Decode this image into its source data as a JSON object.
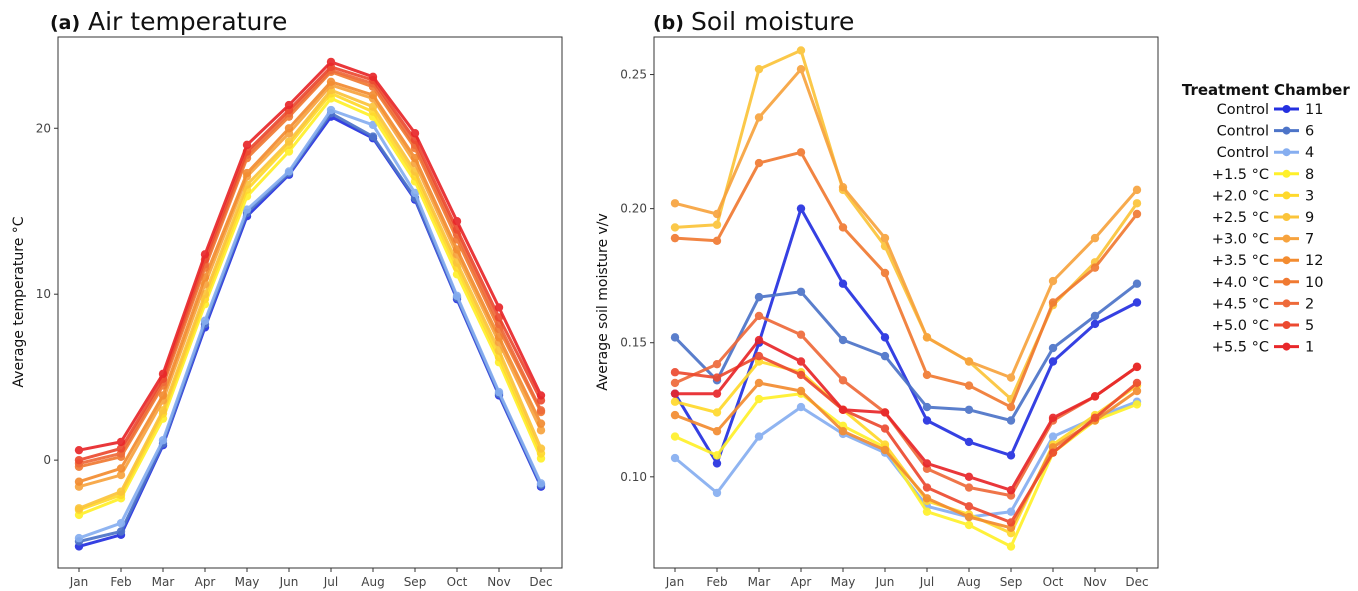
{
  "chart_data": [
    {
      "type": "line",
      "tag": "(a)",
      "title": "Air temperature",
      "ylabel": "Average temperature °C",
      "xlabel": "",
      "categories": [
        "Jan",
        "Feb",
        "Mar",
        "Apr",
        "May",
        "Jun",
        "Jul",
        "Aug",
        "Sep",
        "Oct",
        "Nov",
        "Dec"
      ],
      "ylim": [
        -6.5,
        25.5
      ],
      "yticks": [
        0,
        10,
        20
      ],
      "grid": false,
      "series": [
        {
          "name": "11",
          "treatment": "Control",
          "color": "#2430e0",
          "values": [
            -5.2,
            -4.5,
            0.9,
            8.0,
            14.7,
            17.2,
            20.7,
            19.4,
            15.7,
            9.7,
            3.9,
            -1.6
          ]
        },
        {
          "name": "6",
          "treatment": "Control",
          "color": "#4d74c8",
          "values": [
            -4.9,
            -4.3,
            1.0,
            8.2,
            14.9,
            17.3,
            20.9,
            19.5,
            15.8,
            9.8,
            4.0,
            -1.5
          ]
        },
        {
          "name": "4",
          "treatment": "Control",
          "color": "#86aef0",
          "values": [
            -4.7,
            -3.8,
            1.2,
            8.4,
            15.1,
            17.4,
            21.1,
            20.2,
            16.1,
            9.9,
            4.1,
            -1.4
          ]
        },
        {
          "name": "8",
          "treatment": "+1.5 °C",
          "color": "#fff02a",
          "values": [
            -3.3,
            -2.3,
            2.5,
            9.4,
            15.9,
            18.6,
            21.8,
            20.7,
            16.8,
            11.2,
            5.9,
            0.1
          ]
        },
        {
          "name": "3",
          "treatment": "+2.0 °C",
          "color": "#ffd92c",
          "values": [
            -3.0,
            -2.1,
            2.8,
            9.7,
            16.3,
            19.0,
            22.1,
            21.0,
            17.1,
            11.6,
            6.2,
            0.4
          ]
        },
        {
          "name": "9",
          "treatment": "+2.5 °C",
          "color": "#fbc43a",
          "values": [
            -2.9,
            -1.9,
            3.0,
            10.0,
            16.6,
            19.2,
            22.3,
            21.3,
            17.4,
            11.9,
            6.6,
            0.7
          ]
        },
        {
          "name": "7",
          "treatment": "+3.0 °C",
          "color": "#f7a33e",
          "values": [
            -1.6,
            -0.9,
            3.6,
            10.6,
            17.1,
            19.7,
            22.6,
            21.8,
            17.9,
            12.4,
            7.1,
            1.8
          ]
        },
        {
          "name": "12",
          "treatment": "+3.5 °C",
          "color": "#f38c30",
          "values": [
            -1.3,
            -0.5,
            3.9,
            11.0,
            17.3,
            20.0,
            22.8,
            22.0,
            18.2,
            12.7,
            7.4,
            2.2
          ]
        },
        {
          "name": "10",
          "treatment": "+4.0 °C",
          "color": "#f07a32",
          "values": [
            -0.4,
            0.2,
            4.5,
            11.6,
            18.2,
            20.7,
            23.4,
            22.5,
            18.8,
            13.3,
            7.9,
            2.9
          ]
        },
        {
          "name": "2",
          "treatment": "+4.5 °C",
          "color": "#ee6a3a",
          "values": [
            -0.2,
            0.4,
            4.7,
            11.8,
            18.4,
            20.9,
            23.5,
            22.7,
            19.0,
            13.6,
            8.2,
            3.0
          ]
        },
        {
          "name": "5",
          "treatment": "+5.0 °C",
          "color": "#ec4a30",
          "values": [
            0.0,
            0.7,
            4.9,
            12.1,
            18.6,
            21.1,
            23.7,
            22.9,
            19.3,
            13.9,
            8.6,
            3.6
          ]
        },
        {
          "name": "1",
          "treatment": "+5.5 °C",
          "color": "#e8272a",
          "values": [
            0.6,
            1.1,
            5.2,
            12.4,
            19.0,
            21.4,
            24.0,
            23.1,
            19.7,
            14.4,
            9.2,
            3.9
          ]
        }
      ]
    },
    {
      "type": "line",
      "tag": "(b)",
      "title": "Soil moisture",
      "ylabel": "Average soil moisture v/v",
      "xlabel": "",
      "categories": [
        "Jan",
        "Feb",
        "Mar",
        "Apr",
        "May",
        "Jun",
        "Jul",
        "Aug",
        "Sep",
        "Oct",
        "Nov",
        "Dec"
      ],
      "ylim": [
        0.066,
        0.264
      ],
      "yticks": [
        0.1,
        0.15,
        0.2,
        0.25
      ],
      "yticklabels": [
        "0.10",
        "0.15",
        "0.20",
        "0.25"
      ],
      "grid": false,
      "series": [
        {
          "name": "11",
          "treatment": "Control",
          "color": "#2430e0",
          "values": [
            0.131,
            0.105,
            0.15,
            0.2,
            0.172,
            0.152,
            0.121,
            0.113,
            0.108,
            0.143,
            0.157,
            0.165
          ]
        },
        {
          "name": "6",
          "treatment": "Control",
          "color": "#4d74c8",
          "values": [
            0.152,
            0.136,
            0.167,
            0.169,
            0.151,
            0.145,
            0.126,
            0.125,
            0.121,
            0.148,
            0.16,
            0.172
          ]
        },
        {
          "name": "4",
          "treatment": "Control",
          "color": "#86aef0",
          "values": [
            0.107,
            0.094,
            0.115,
            0.126,
            0.116,
            0.109,
            0.089,
            0.085,
            0.087,
            0.115,
            0.122,
            0.128
          ]
        },
        {
          "name": "8",
          "treatment": "+1.5 °C",
          "color": "#fff02a",
          "values": [
            0.115,
            0.108,
            0.129,
            0.131,
            0.119,
            0.111,
            0.087,
            0.082,
            0.074,
            0.109,
            0.121,
            0.127
          ]
        },
        {
          "name": "3",
          "treatment": "+2.0 °C",
          "color": "#ffd92c",
          "values": [
            0.128,
            0.124,
            0.143,
            0.139,
            0.125,
            0.112,
            0.091,
            0.086,
            0.079,
            0.112,
            0.123,
            0.134
          ]
        },
        {
          "name": "9",
          "treatment": "+2.5 °C",
          "color": "#fbc43a",
          "values": [
            0.193,
            0.194,
            0.252,
            0.259,
            0.207,
            0.186,
            0.152,
            0.143,
            0.129,
            0.164,
            0.18,
            0.202
          ]
        },
        {
          "name": "7",
          "treatment": "+3.0 °C",
          "color": "#f7a33e",
          "values": [
            0.202,
            0.198,
            0.234,
            0.252,
            0.208,
            0.189,
            0.152,
            0.143,
            0.137,
            0.173,
            0.189,
            0.207
          ]
        },
        {
          "name": "12",
          "treatment": "+3.5 °C",
          "color": "#f38c30",
          "values": [
            0.123,
            0.117,
            0.135,
            0.132,
            0.117,
            0.11,
            0.092,
            0.085,
            0.081,
            0.111,
            0.121,
            0.132
          ]
        },
        {
          "name": "10",
          "treatment": "+4.0 °C",
          "color": "#f07a32",
          "values": [
            0.189,
            0.188,
            0.217,
            0.221,
            0.193,
            0.176,
            0.138,
            0.134,
            0.126,
            0.165,
            0.178,
            0.198
          ]
        },
        {
          "name": "2",
          "treatment": "+4.5 °C",
          "color": "#ee6a3a",
          "values": [
            0.135,
            0.142,
            0.16,
            0.153,
            0.136,
            0.124,
            0.103,
            0.096,
            0.093,
            0.121,
            0.13,
            0.141
          ]
        },
        {
          "name": "5",
          "treatment": "+5.0 °C",
          "color": "#ec4a30",
          "values": [
            0.139,
            0.137,
            0.145,
            0.138,
            0.125,
            0.118,
            0.096,
            0.089,
            0.083,
            0.109,
            0.122,
            0.135
          ]
        },
        {
          "name": "1",
          "treatment": "+5.5 °C",
          "color": "#e8272a",
          "values": [
            0.131,
            0.131,
            0.151,
            0.143,
            0.125,
            0.124,
            0.105,
            0.1,
            0.095,
            0.122,
            0.13,
            0.141
          ]
        }
      ]
    }
  ],
  "legend": {
    "placement": "right",
    "treatment_header": "Treatment",
    "chamber_header": "Chamber"
  }
}
